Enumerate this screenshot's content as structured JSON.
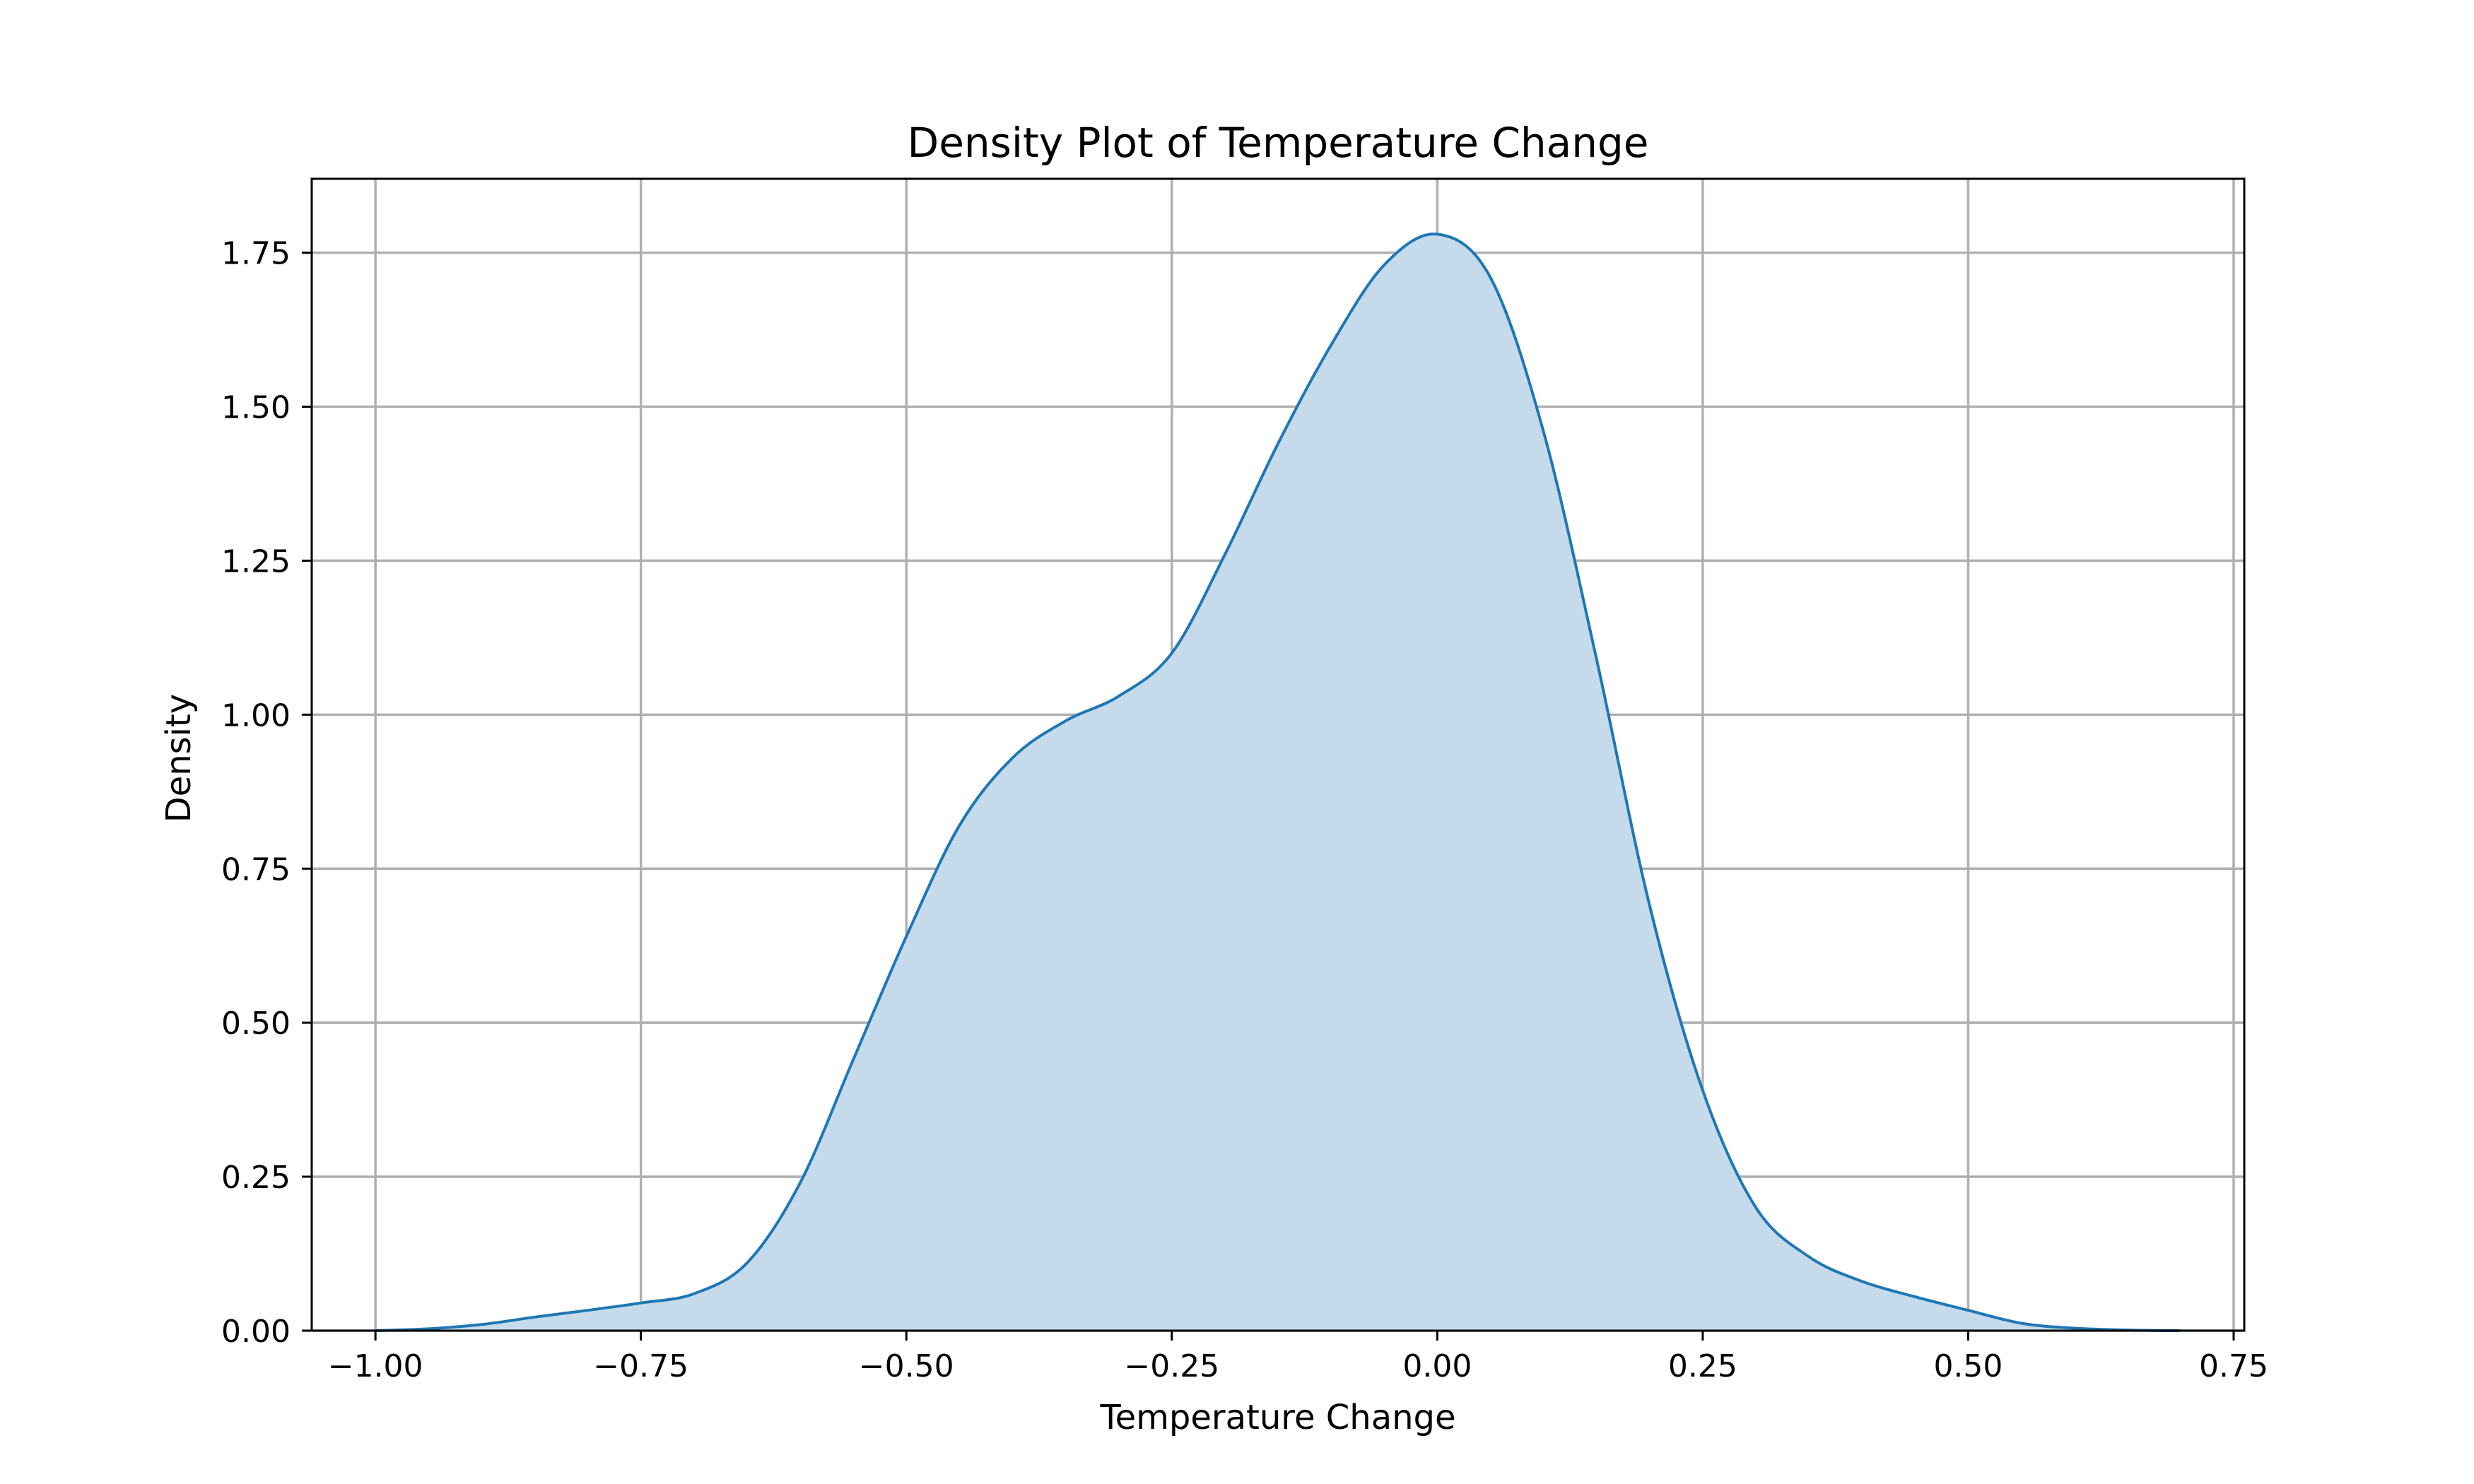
{
  "chart_data": {
    "type": "area",
    "title": "Density Plot of Temperature Change",
    "xlabel": "Temperature Change",
    "ylabel": "Density",
    "xlim": [
      -1.06,
      0.76
    ],
    "ylim": [
      0,
      1.87
    ],
    "grid": true,
    "legend": "none",
    "x_ticks": [
      -1.0,
      -0.75,
      -0.5,
      -0.25,
      0.0,
      0.25,
      0.5,
      0.75
    ],
    "x_tick_labels": [
      "−1.00",
      "−0.75",
      "−0.50",
      "−0.25",
      "0.00",
      "0.25",
      "0.50",
      "0.75"
    ],
    "y_ticks": [
      0.0,
      0.25,
      0.5,
      0.75,
      1.0,
      1.25,
      1.5,
      1.75
    ],
    "y_tick_labels": [
      "0.00",
      "0.25",
      "0.50",
      "0.75",
      "1.00",
      "1.25",
      "1.50",
      "1.75"
    ],
    "colors": {
      "line": "#1f77b4",
      "fill": "#c5dbec"
    },
    "series": [
      {
        "x": [
          -1.0,
          -0.95,
          -0.9,
          -0.85,
          -0.8,
          -0.75,
          -0.7,
          -0.65,
          -0.6,
          -0.55,
          -0.5,
          -0.45,
          -0.4,
          -0.35,
          -0.3,
          -0.25,
          -0.2,
          -0.15,
          -0.1,
          -0.05,
          0.0,
          0.05,
          0.1,
          0.15,
          0.2,
          0.25,
          0.3,
          0.35,
          0.4,
          0.45,
          0.5,
          0.55,
          0.6,
          0.65,
          0.7
        ],
        "y": [
          0.0,
          0.003,
          0.01,
          0.022,
          0.033,
          0.045,
          0.06,
          0.11,
          0.24,
          0.44,
          0.64,
          0.82,
          0.93,
          0.99,
          1.03,
          1.1,
          1.26,
          1.44,
          1.6,
          1.73,
          1.78,
          1.71,
          1.46,
          1.09,
          0.69,
          0.39,
          0.2,
          0.12,
          0.08,
          0.055,
          0.033,
          0.012,
          0.004,
          0.001,
          0.0
        ]
      }
    ]
  }
}
